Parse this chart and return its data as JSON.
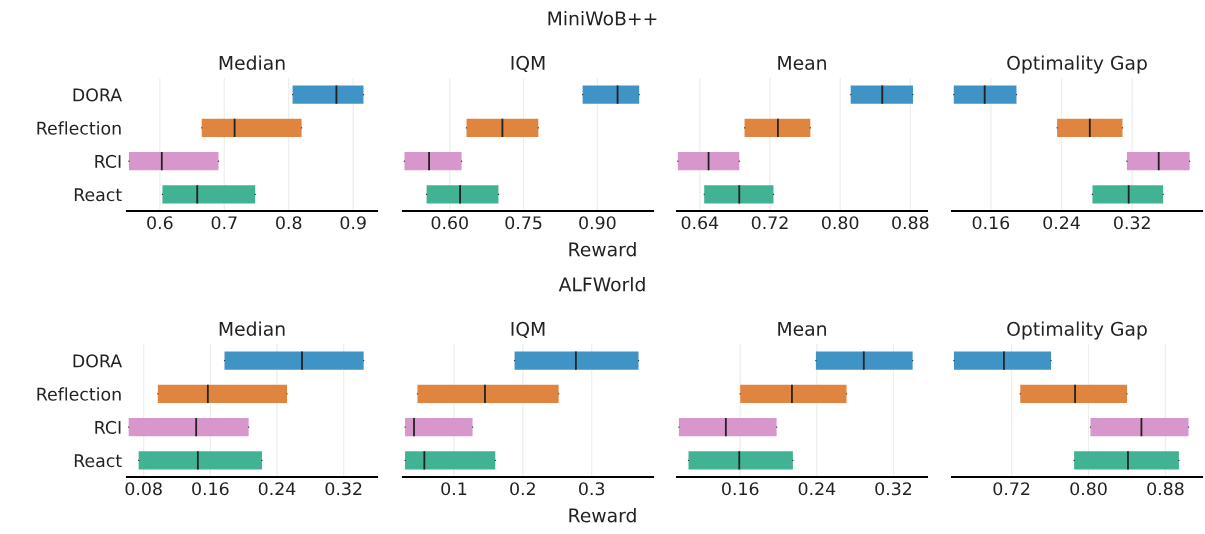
{
  "chart_data": [
    {
      "type": "box",
      "orientation": "horizontal",
      "title": "Median",
      "annotations": [
        "MiniWoB++"
      ],
      "categories": [
        "DORA",
        "Reflection",
        "RCI",
        "React"
      ],
      "colors": [
        "#4093c5",
        "#df853f",
        "#d897cc",
        "#41b394"
      ],
      "grid": "x",
      "boxes": [
        {
          "low": 0.806,
          "q1": 0.806,
          "median": 0.874,
          "q3": 0.916,
          "high": 0.916
        },
        {
          "low": 0.665,
          "q1": 0.665,
          "median": 0.716,
          "q3": 0.82,
          "high": 0.82
        },
        {
          "low": 0.552,
          "q1": 0.552,
          "median": 0.603,
          "q3": 0.691,
          "high": 0.691
        },
        {
          "low": 0.604,
          "q1": 0.604,
          "median": 0.658,
          "q3": 0.748,
          "high": 0.748
        }
      ],
      "xlim": [
        0.549,
        0.937
      ],
      "xticks": [
        0.6,
        0.7,
        0.8,
        0.9
      ]
    },
    {
      "type": "box",
      "orientation": "horizontal",
      "title": "IQM",
      "xlabel": "Reward",
      "colors": [
        "#4093c5",
        "#df853f",
        "#d897cc",
        "#41b394"
      ],
      "grid": "x",
      "tick_labels": "x",
      "boxes": [
        {
          "low": 0.87,
          "q1": 0.87,
          "median": 0.941,
          "q3": 0.985,
          "high": 0.985
        },
        {
          "low": 0.634,
          "q1": 0.634,
          "median": 0.707,
          "q3": 0.78,
          "high": 0.78
        },
        {
          "low": 0.508,
          "q1": 0.508,
          "median": 0.558,
          "q3": 0.624,
          "high": 0.624
        },
        {
          "low": 0.553,
          "q1": 0.553,
          "median": 0.621,
          "q3": 0.699,
          "high": 0.699
        }
      ],
      "xlim": [
        0.505,
        1.013
      ],
      "xticks": [
        {
          "value": 0.6,
          "label": "0.60"
        },
        0.75,
        {
          "value": 0.9,
          "label": "0.90"
        }
      ]
    },
    {
      "type": "box",
      "orientation": "horizontal",
      "title": "Mean",
      "colors": [
        "#4093c5",
        "#df853f",
        "#d897cc",
        "#41b394"
      ],
      "grid": "x",
      "tick_labels": "x",
      "boxes": [
        {
          "low": 0.812,
          "q1": 0.812,
          "median": 0.848,
          "q3": 0.883,
          "high": 0.883
        },
        {
          "low": 0.691,
          "q1": 0.691,
          "median": 0.729,
          "q3": 0.766,
          "high": 0.766
        },
        {
          "low": 0.615,
          "q1": 0.615,
          "median": 0.65,
          "q3": 0.685,
          "high": 0.685
        },
        {
          "low": 0.645,
          "q1": 0.645,
          "median": 0.685,
          "q3": 0.724,
          "high": 0.724
        }
      ],
      "xlim": [
        0.614,
        0.899
      ],
      "xticks": [
        0.64,
        0.72,
        {
          "value": 0.8,
          "label": "0.80"
        },
        0.88
      ]
    },
    {
      "type": "box",
      "orientation": "horizontal",
      "title": "Optimality Gap",
      "colors": [
        "#4093c5",
        "#df853f",
        "#d897cc",
        "#41b394"
      ],
      "grid": "x",
      "tick_labels": "x",
      "boxes": [
        {
          "low": 0.118,
          "q1": 0.118,
          "median": 0.153,
          "q3": 0.189,
          "high": 0.189
        },
        {
          "low": 0.235,
          "q1": 0.235,
          "median": 0.272,
          "q3": 0.309,
          "high": 0.309
        },
        {
          "low": 0.314,
          "q1": 0.314,
          "median": 0.35,
          "q3": 0.385,
          "high": 0.385
        },
        {
          "low": 0.275,
          "q1": 0.275,
          "median": 0.316,
          "q3": 0.355,
          "high": 0.355
        }
      ],
      "xlim": [
        0.116,
        0.399
      ],
      "xticks": [
        0.16,
        0.24,
        0.32
      ]
    },
    {
      "type": "box",
      "orientation": "horizontal",
      "title": "Median",
      "annotations": [
        "ALFWorld"
      ],
      "categories": [
        "DORA",
        "Reflection",
        "RCI",
        "React"
      ],
      "colors": [
        "#4093c5",
        "#df853f",
        "#d897cc",
        "#41b394"
      ],
      "grid": "x",
      "boxes": [
        {
          "low": 0.177,
          "q1": 0.177,
          "median": 0.27,
          "q3": 0.344,
          "high": 0.344
        },
        {
          "low": 0.097,
          "q1": 0.097,
          "median": 0.157,
          "q3": 0.252,
          "high": 0.252
        },
        {
          "low": 0.062,
          "q1": 0.062,
          "median": 0.143,
          "q3": 0.206,
          "high": 0.206
        },
        {
          "low": 0.074,
          "q1": 0.074,
          "median": 0.145,
          "q3": 0.222,
          "high": 0.222
        }
      ],
      "xlim": [
        0.06,
        0.36
      ],
      "xticks": [
        0.08,
        0.16,
        0.24,
        0.32
      ]
    },
    {
      "type": "box",
      "orientation": "horizontal",
      "title": "IQM",
      "xlabel": "Reward",
      "colors": [
        "#4093c5",
        "#df853f",
        "#d897cc",
        "#41b394"
      ],
      "grid": "x",
      "tick_labels": "x",
      "boxes": [
        {
          "low": 0.188,
          "q1": 0.188,
          "median": 0.277,
          "q3": 0.368,
          "high": 0.368
        },
        {
          "low": 0.047,
          "q1": 0.047,
          "median": 0.145,
          "q3": 0.252,
          "high": 0.252
        },
        {
          "low": 0.029,
          "q1": 0.029,
          "median": 0.042,
          "q3": 0.127,
          "high": 0.127
        },
        {
          "low": 0.029,
          "q1": 0.029,
          "median": 0.057,
          "q3": 0.16,
          "high": 0.16
        }
      ],
      "xlim": [
        0.026,
        0.389
      ],
      "xticks": [
        0.1,
        0.2,
        0.3
      ]
    },
    {
      "type": "box",
      "orientation": "horizontal",
      "title": "Mean",
      "colors": [
        "#4093c5",
        "#df853f",
        "#d897cc",
        "#41b394"
      ],
      "grid": "x",
      "tick_labels": "x",
      "boxes": [
        {
          "low": 0.239,
          "q1": 0.239,
          "median": 0.289,
          "q3": 0.34,
          "high": 0.34
        },
        {
          "low": 0.16,
          "q1": 0.16,
          "median": 0.214,
          "q3": 0.271,
          "high": 0.271
        },
        {
          "low": 0.096,
          "q1": 0.096,
          "median": 0.145,
          "q3": 0.198,
          "high": 0.198
        },
        {
          "low": 0.106,
          "q1": 0.106,
          "median": 0.159,
          "q3": 0.215,
          "high": 0.215
        }
      ],
      "xlim": [
        0.094,
        0.355
      ],
      "xticks": [
        0.16,
        0.24,
        0.32
      ]
    },
    {
      "type": "box",
      "orientation": "horizontal",
      "title": "Optimality Gap",
      "colors": [
        "#4093c5",
        "#df853f",
        "#d897cc",
        "#41b394"
      ],
      "grid": "x",
      "tick_labels": "x",
      "boxes": [
        {
          "low": 0.66,
          "q1": 0.66,
          "median": 0.712,
          "q3": 0.761,
          "high": 0.761
        },
        {
          "low": 0.729,
          "q1": 0.729,
          "median": 0.786,
          "q3": 0.84,
          "high": 0.84
        },
        {
          "low": 0.802,
          "q1": 0.802,
          "median": 0.855,
          "q3": 0.904,
          "high": 0.904
        },
        {
          "low": 0.785,
          "q1": 0.785,
          "median": 0.841,
          "q3": 0.894,
          "high": 0.894
        }
      ],
      "xlim": [
        0.658,
        0.918
      ],
      "xticks": [
        0.72,
        {
          "value": 0.8,
          "label": "0.80"
        },
        0.88
      ]
    }
  ]
}
